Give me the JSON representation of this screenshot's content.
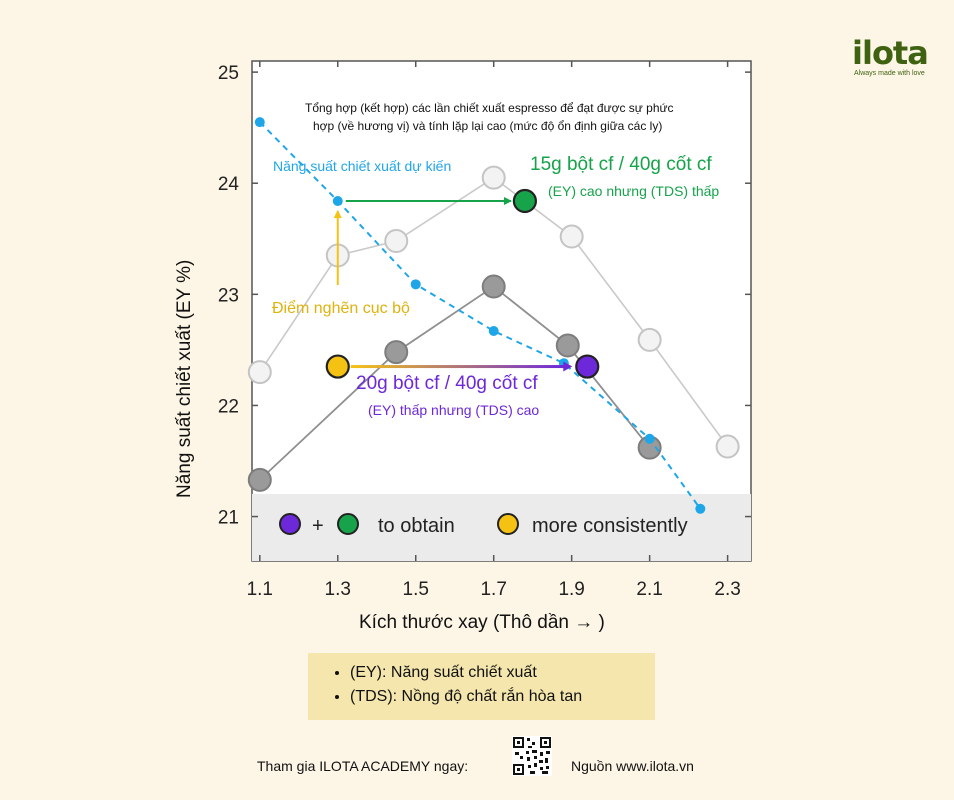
{
  "chart_data": {
    "type": "line",
    "xlabel": "Kích thước xay (Thô dần → )",
    "ylabel": "Năng suất chiết xuất (EY %)",
    "x_ticks": [
      "1.1",
      "1.3",
      "1.5",
      "1.7",
      "1.9",
      "2.1",
      "2.3"
    ],
    "y_ticks": [
      "21",
      "22",
      "23",
      "24",
      "25"
    ],
    "xlim": [
      1.08,
      2.36
    ],
    "ylim": [
      20.6,
      25.1
    ],
    "grid": false,
    "series": [
      {
        "style": "light-gray",
        "points": [
          [
            1.1,
            22.3
          ],
          [
            1.3,
            23.35
          ],
          [
            1.45,
            23.48
          ],
          [
            1.7,
            24.05
          ],
          [
            1.9,
            23.52
          ],
          [
            2.1,
            22.59
          ],
          [
            2.3,
            21.63
          ]
        ]
      },
      {
        "style": "dark-gray",
        "points": [
          [
            1.1,
            21.33
          ],
          [
            1.45,
            22.48
          ],
          [
            1.7,
            23.07
          ],
          [
            1.89,
            22.54
          ],
          [
            2.1,
            21.62
          ]
        ]
      },
      {
        "style": "blue-dashed",
        "points": [
          [
            1.1,
            24.55
          ],
          [
            1.3,
            23.84
          ],
          [
            1.5,
            23.09
          ],
          [
            1.7,
            22.67
          ],
          [
            1.88,
            22.38
          ],
          [
            2.1,
            21.7
          ],
          [
            2.23,
            21.07
          ]
        ]
      }
    ],
    "highlights": [
      {
        "color": "#f5c214",
        "x": 1.3,
        "y": 22.35
      },
      {
        "color": "#6d28d9",
        "x": 1.94,
        "y": 22.35
      },
      {
        "color": "#16a34a",
        "x": 1.78,
        "y": 23.84
      }
    ],
    "annotations": {
      "top_note_line1": "Tổng hợp (kết hợp) các lần chiết xuất espresso để đạt được sự phức",
      "top_note_line2": "hợp (về hương vị) và tính lặp lại cao (mức độ ổn định giữa các ly)",
      "expected_yield": "Năng suất chiết xuất dự kiến",
      "green_title": "15g bột cf / 40g cốt cf",
      "green_sub": "(EY) cao nhưng (TDS) thấp",
      "local_bottleneck": "Điểm nghẽn cục bộ",
      "purple_title": "20g bột cf / 40g cốt cf",
      "purple_sub": "(EY) thấp nhưng (TDS) cao",
      "band_plus": "+",
      "band_text1": "to obtain",
      "band_text2": "more consistently"
    },
    "colors": {
      "blue": "#1fa6e8",
      "green": "#16a34a",
      "purple": "#6d28d9",
      "yellow": "#f5c214",
      "light_gray": "#c9c9c9",
      "dark_gray": "#8f8f8f"
    }
  },
  "logo": {
    "word": "ilota",
    "tagline": "Always made with love"
  },
  "legend_items": [
    "(EY): Năng suất chiết xuất",
    "(TDS): Nồng độ chất rắn hòa tan"
  ],
  "footer": {
    "left": "Tham gia ILOTA ACADEMY ngay:",
    "right": "Nguồn www.ilota.vn"
  }
}
